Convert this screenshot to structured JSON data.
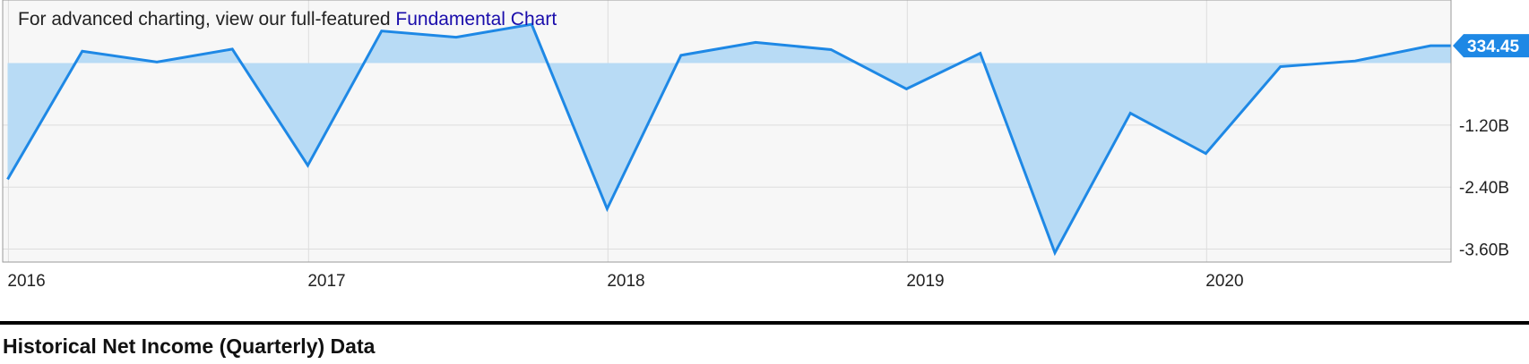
{
  "promo": {
    "text": "For advanced charting, view our full-featured ",
    "link_text": "Fundamental Chart"
  },
  "section": {
    "title": "Historical Net Income (Quarterly) Data"
  },
  "colors": {
    "line": "#1e88e5",
    "fill": "#b8dbf5",
    "plot_bg": "#f7f7f7",
    "grid": "#dddddd",
    "badge": "#1e88e5"
  },
  "chart_data": {
    "type": "area",
    "x": [
      "2015-12-31",
      "2016-03-31",
      "2016-06-30",
      "2016-09-30",
      "2016-12-31",
      "2017-03-31",
      "2017-06-30",
      "2017-09-30",
      "2017-12-31",
      "2018-03-31",
      "2018-06-30",
      "2018-09-30",
      "2018-12-31",
      "2019-03-31",
      "2019-06-30",
      "2019-09-30",
      "2019-12-31",
      "2020-03-31",
      "2020-06-30",
      "2020-09-30"
    ],
    "y": [
      -2.25,
      0.23,
      0.02,
      0.27,
      -1.98,
      0.62,
      0.5,
      0.75,
      -2.82,
      0.15,
      0.4,
      0.26,
      -0.5,
      0.19,
      -3.67,
      -0.97,
      -1.75,
      -0.07,
      0.04,
      0.33445
    ],
    "y_unit": "USD",
    "baseline": 0,
    "xlim": [
      "2015-12-25",
      "2020-10-25"
    ],
    "ylim": [
      -3.85,
      1.22
    ],
    "x_ticks": [
      {
        "date": "2016-01-01",
        "label": "2016"
      },
      {
        "date": "2017-01-01",
        "label": "2017"
      },
      {
        "date": "2018-01-01",
        "label": "2018"
      },
      {
        "date": "2019-01-01",
        "label": "2019"
      },
      {
        "date": "2020-01-01",
        "label": "2020"
      }
    ],
    "y_ticks": [
      {
        "value": -1.2,
        "label": "-1.20B"
      },
      {
        "value": -2.4,
        "label": "-2.40B"
      },
      {
        "value": -3.6,
        "label": "-3.60B"
      }
    ],
    "last_value_label": "334.45",
    "grid": true,
    "legend": "none"
  }
}
